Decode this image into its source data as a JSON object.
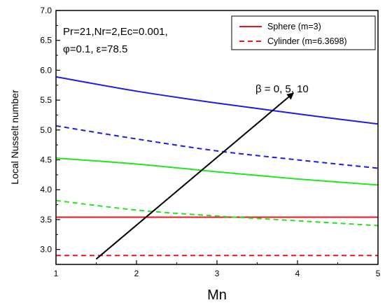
{
  "chart_data": {
    "type": "line",
    "xlabel": "Mn",
    "ylabel": "Local Nusselt number",
    "xlim": [
      1,
      5
    ],
    "ylim": [
      2.75,
      7.0
    ],
    "xticks": [
      "1",
      "2",
      "3",
      "4",
      "5"
    ],
    "yticks": [
      "3.0",
      "3.5",
      "4.0",
      "4.5",
      "5.0",
      "5.5",
      "6.0",
      "6.5",
      "7.0"
    ],
    "parameters_line1": "Pr=21,Nr=2,Ec=0.001,",
    "parameters_line2": "φ=0.1, ε=78.5",
    "arrow_label": "β = 0, 5, 10",
    "legend_position": "top-right",
    "legend": [
      {
        "label": "Sphere (m=3)",
        "color": "#e8141e",
        "dash": "solid"
      },
      {
        "label": "Cylinder (m=6.3698)",
        "color": "#e8141e",
        "dash": "dashed"
      }
    ],
    "series": [
      {
        "geometry": "sphere",
        "beta": 0,
        "color": "#e8141e",
        "dash": "solid",
        "x": [
          1,
          2,
          3,
          4,
          5
        ],
        "y": [
          3.54,
          3.54,
          3.54,
          3.54,
          3.54
        ]
      },
      {
        "geometry": "cylinder",
        "beta": 0,
        "color": "#e8141e",
        "dash": "dashed",
        "x": [
          1,
          2,
          3,
          4,
          5
        ],
        "y": [
          2.9,
          2.9,
          2.9,
          2.9,
          2.9
        ]
      },
      {
        "geometry": "sphere",
        "beta": 5,
        "color": "#22e61e",
        "dash": "solid",
        "x": [
          1,
          2,
          3,
          4,
          5
        ],
        "y": [
          4.53,
          4.43,
          4.3,
          4.18,
          4.08
        ]
      },
      {
        "geometry": "cylinder",
        "beta": 5,
        "color": "#22e61e",
        "dash": "dashed",
        "x": [
          1,
          2,
          3,
          4,
          5
        ],
        "y": [
          3.82,
          3.66,
          3.56,
          3.48,
          3.4
        ]
      },
      {
        "geometry": "sphere",
        "beta": 10,
        "color": "#1c1ce8",
        "dash": "solid",
        "x": [
          1,
          2,
          3,
          4,
          5
        ],
        "y": [
          5.89,
          5.65,
          5.45,
          5.27,
          5.1
        ]
      },
      {
        "geometry": "cylinder",
        "beta": 10,
        "color": "#1c1ce8",
        "dash": "dashed",
        "x": [
          1,
          2,
          3,
          4,
          5
        ],
        "y": [
          5.07,
          4.85,
          4.65,
          4.5,
          4.36
        ]
      }
    ],
    "arrow": {
      "from": [
        1.5,
        2.84
      ],
      "to": [
        3.95,
        5.62
      ]
    }
  }
}
